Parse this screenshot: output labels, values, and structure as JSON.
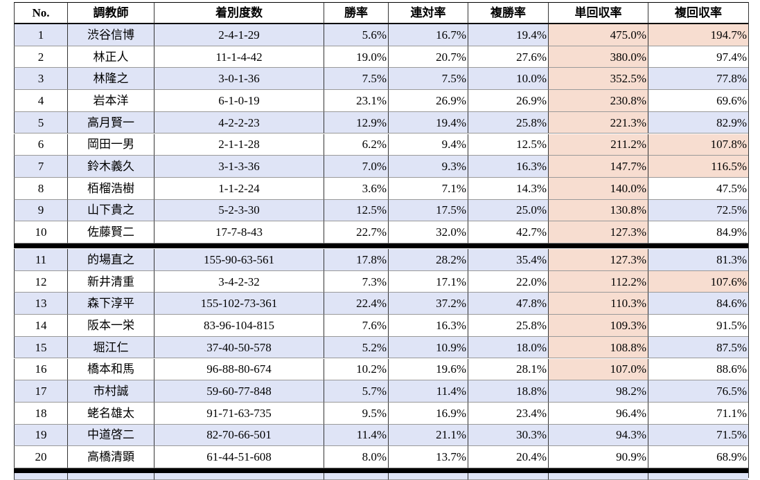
{
  "table": {
    "header": [
      "No.",
      "調教師",
      "着別度数",
      "勝率",
      "連対率",
      "複勝率",
      "単回収率",
      "複回収率"
    ],
    "rows": [
      [
        "1",
        "渋谷信博",
        "2-4-1-29",
        "5.6%",
        "16.7%",
        "19.4%",
        "475.0%",
        "194.7%"
      ],
      [
        "2",
        "林正人",
        "11-1-4-42",
        "19.0%",
        "20.7%",
        "27.6%",
        "380.0%",
        "97.4%"
      ],
      [
        "3",
        "林隆之",
        "3-0-1-36",
        "7.5%",
        "7.5%",
        "10.0%",
        "352.5%",
        "77.8%"
      ],
      [
        "4",
        "岩本洋",
        "6-1-0-19",
        "23.1%",
        "26.9%",
        "26.9%",
        "230.8%",
        "69.6%"
      ],
      [
        "5",
        "高月賢一",
        "4-2-2-23",
        "12.9%",
        "19.4%",
        "25.8%",
        "221.3%",
        "82.9%"
      ],
      [
        "6",
        "岡田一男",
        "2-1-1-28",
        "6.2%",
        "9.4%",
        "12.5%",
        "211.2%",
        "107.8%"
      ],
      [
        "7",
        "鈴木義久",
        "3-1-3-36",
        "7.0%",
        "9.3%",
        "16.3%",
        "147.7%",
        "116.5%"
      ],
      [
        "8",
        "栢榴浩樹",
        "1-1-2-24",
        "3.6%",
        "7.1%",
        "14.3%",
        "140.0%",
        "47.5%"
      ],
      [
        "9",
        "山下貴之",
        "5-2-3-30",
        "12.5%",
        "17.5%",
        "25.0%",
        "130.8%",
        "72.5%"
      ],
      [
        "10",
        "佐藤賢二",
        "17-7-8-43",
        "22.7%",
        "32.0%",
        "42.7%",
        "127.3%",
        "84.9%"
      ],
      [
        "11",
        "的場直之",
        "155-90-63-561",
        "17.8%",
        "28.2%",
        "35.4%",
        "127.3%",
        "81.3%"
      ],
      [
        "12",
        "新井清重",
        "3-4-2-32",
        "7.3%",
        "17.1%",
        "22.0%",
        "112.2%",
        "107.6%"
      ],
      [
        "13",
        "森下淳平",
        "155-102-73-361",
        "22.4%",
        "37.2%",
        "47.8%",
        "110.3%",
        "84.6%"
      ],
      [
        "14",
        "阪本一栄",
        "83-96-104-815",
        "7.6%",
        "16.3%",
        "25.8%",
        "109.3%",
        "91.5%"
      ],
      [
        "15",
        "堀江仁",
        "37-40-50-578",
        "5.2%",
        "10.9%",
        "18.0%",
        "108.8%",
        "87.5%"
      ],
      [
        "16",
        "橋本和馬",
        "96-88-80-674",
        "10.2%",
        "19.6%",
        "28.1%",
        "107.0%",
        "88.6%"
      ],
      [
        "17",
        "市村誠",
        "59-60-77-848",
        "5.7%",
        "11.4%",
        "18.8%",
        "98.2%",
        "76.5%"
      ],
      [
        "18",
        "蛯名雄太",
        "91-71-63-735",
        "9.5%",
        "16.9%",
        "23.4%",
        "96.4%",
        "71.1%"
      ],
      [
        "19",
        "中道啓二",
        "82-70-66-501",
        "11.4%",
        "21.1%",
        "30.3%",
        "94.3%",
        "71.5%"
      ],
      [
        "20",
        "高橋清顕",
        "61-44-51-608",
        "8.0%",
        "13.7%",
        "20.4%",
        "90.9%",
        "68.9%"
      ]
    ]
  }
}
